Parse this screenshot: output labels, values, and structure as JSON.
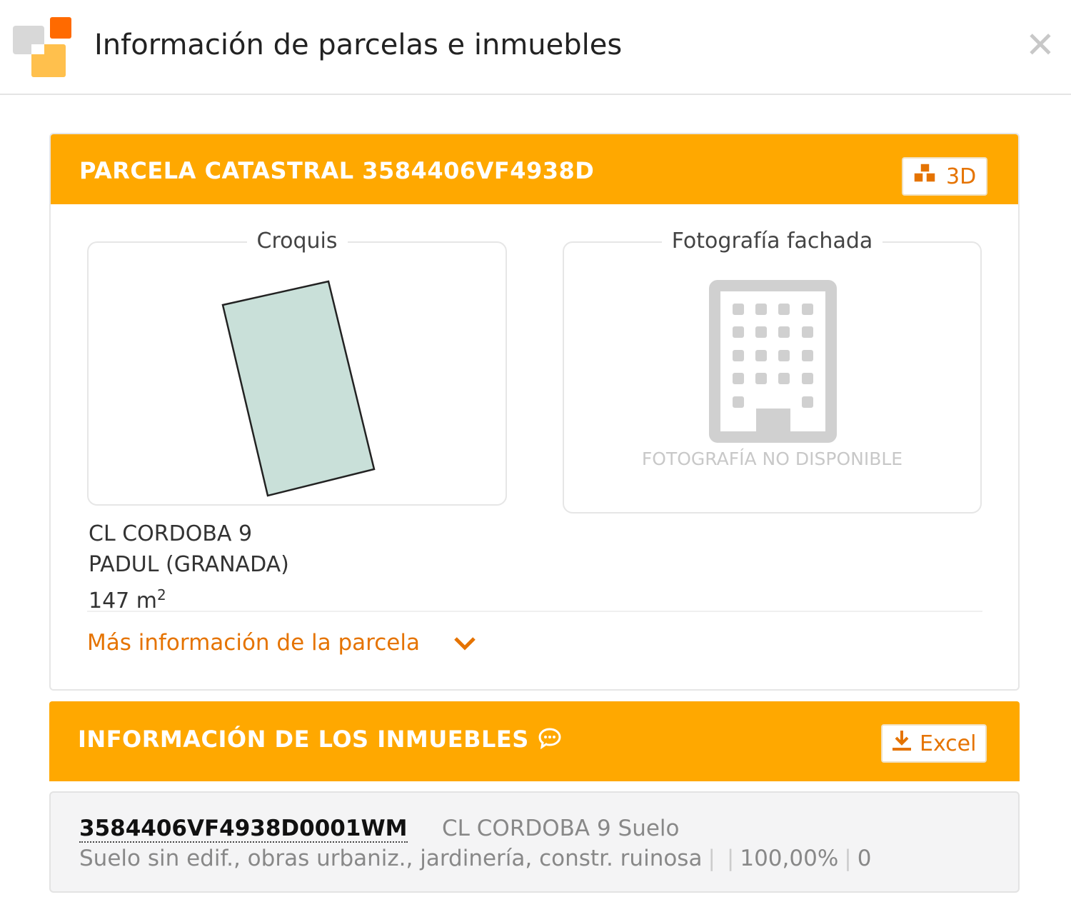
{
  "header": {
    "title": "Información de parcelas e inmuebles",
    "close_icon": "close-icon"
  },
  "colors": {
    "accent": "#ffa800",
    "link": "#e57300",
    "parcel_fill": "#c9e0d9"
  },
  "parcela": {
    "title": "PARCELA CATASTRAL 3584406VF4938D",
    "btn_3d": "3D",
    "croquis_label": "Croquis",
    "foto_label": "Fotografía fachada",
    "foto_unavailable": "FOTOGRAFÍA NO DISPONIBLE",
    "address_line1": "CL CORDOBA 9",
    "address_line2": "PADUL (GRANADA)",
    "area": "147 m",
    "area_unit_sup": "2",
    "more_info": "Más información de la parcela"
  },
  "inmuebles": {
    "title": "INFORMACIÓN DE LOS INMUEBLES",
    "btn_excel": "Excel",
    "items": [
      {
        "ref": "3584406VF4938D0001WM",
        "address": "CL CORDOBA 9 Suelo",
        "use": "Suelo sin edif., obras urbaniz., jardinería, constr. ruinosa",
        "field2": "",
        "participation": "100,00%",
        "year": "0"
      }
    ]
  }
}
